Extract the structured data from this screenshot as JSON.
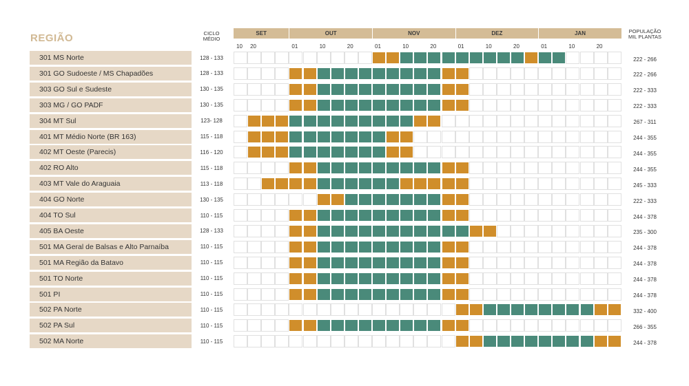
{
  "header": {
    "regiao": "REGIÃO",
    "ciclo_line1": "CICLO",
    "ciclo_line2": "MÉDIO",
    "pop_line1": "POPULAÇÃO",
    "pop_line2": "MIL PLANTAS"
  },
  "months": [
    "SET",
    "OUT",
    "NOV",
    "DEZ",
    "JAN"
  ],
  "ticks": [
    "10",
    "20",
    "01",
    "10",
    "20",
    "01",
    "10",
    "20",
    "01",
    "10",
    "20",
    "01",
    "10",
    "20"
  ],
  "colors": {
    "orange": "#d08e2b",
    "green": "#4a8a7a",
    "label_bg": "#e6d8c6",
    "month_bg": "#d4bc96"
  },
  "chart_data": {
    "type": "table",
    "legend_note": "",
    "rows": [
      {
        "region": "301 MS Norte",
        "cycle": "128 - 133",
        "population": "222 - 266",
        "pattern": "..........OOGGGGGGGGGOGG"
      },
      {
        "region": "301 GO Sudoeste / MS Chapadões",
        "cycle": "128 - 133",
        "population": "222 - 266",
        "pattern": "....OOGGGGGGGGGOO......."
      },
      {
        "region": "303 GO Sul e Sudeste",
        "cycle": "130 - 135",
        "population": "222 - 333",
        "pattern": "....OOGGGGGGGGGOO......."
      },
      {
        "region": "303 MG / GO PADF",
        "cycle": "130 - 135",
        "population": "222 - 333",
        "pattern": "....OOGGGGGGGGGOO......."
      },
      {
        "region": "304 MT Sul",
        "cycle": "123- 128",
        "population": "267 - 311",
        "pattern": ".OOOGGGGGGGGGOO........."
      },
      {
        "region": "401 MT Médio Norte (BR 163)",
        "cycle": "115 - 118",
        "population": "244 - 355",
        "pattern": ".OOOGGGGGGGOO.........."
      },
      {
        "region": "402 MT Oeste (Parecis)",
        "cycle": "116 - 120",
        "population": "244 - 355",
        "pattern": ".OOOGGGGGGGOO.........."
      },
      {
        "region": "402 RO Alto",
        "cycle": "115 - 118",
        "population": "244 - 355",
        "pattern": "....OOGGGGGGGGGOO......."
      },
      {
        "region": "403 MT Vale do Araguaia",
        "cycle": "113 - 118",
        "population": "245 - 333",
        "pattern": "..OOOOGGGGGGOOOOO......."
      },
      {
        "region": "404 GO Norte",
        "cycle": "130 - 135",
        "population": "222 - 333",
        "pattern": "......OOGGGGGGGOO......."
      },
      {
        "region": "404 TO Sul",
        "cycle": "110 - 115",
        "population": "244 - 378",
        "pattern": "....OOGGGGGGGGGOO......."
      },
      {
        "region": "405 BA Oeste",
        "cycle": "128 - 133",
        "population": "235 - 300",
        "pattern": "....OOGGGGGGGGGGGOO....."
      },
      {
        "region": "501 MA Geral de Balsas e Alto Parnaíba",
        "cycle": "110 - 115",
        "population": "244 - 378",
        "pattern": "....OOGGGGGGGGGOO......."
      },
      {
        "region": "501 MA Região da Batavo",
        "cycle": "110 - 115",
        "population": "244 - 378",
        "pattern": "....OOGGGGGGGGGOO......."
      },
      {
        "region": "501 TO Norte",
        "cycle": "110 - 115",
        "population": "244 - 378",
        "pattern": "....OOGGGGGGGGGOO......."
      },
      {
        "region": "501 PI",
        "cycle": "110 - 115",
        "population": "244 - 378",
        "pattern": "....OOGGGGGGGGGOO......."
      },
      {
        "region": "502 PA Norte",
        "cycle": "110 - 115",
        "population": "332 - 400",
        "pattern": "................OOGGGGGGGGOO"
      },
      {
        "region": "502 PA Sul",
        "cycle": "110 - 115",
        "population": "266 - 355",
        "pattern": "....OOGGGGGGGGGOO......."
      },
      {
        "region": "502 MA Norte",
        "cycle": "110 - 115",
        "population": "244 - 378",
        "pattern": "................OOGGGGGGGGOO"
      }
    ]
  }
}
